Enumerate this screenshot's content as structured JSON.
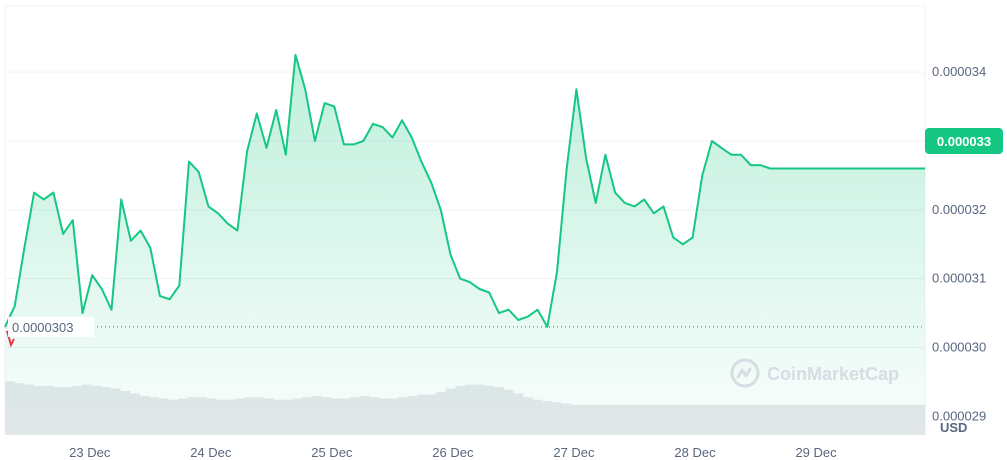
{
  "chart_data": {
    "type": "line",
    "currency": "USD",
    "x_ticks": [
      "23 Dec",
      "24 Dec",
      "25 Dec",
      "26 Dec",
      "27 Dec",
      "28 Dec",
      "29 Dec"
    ],
    "y_ticks": [
      "0.000034",
      "0.000033",
      "0.000032",
      "0.000031",
      "0.000030",
      "0.000029"
    ],
    "y_tick_values": [
      3.4e-05,
      3.3e-05,
      3.2e-05,
      3.1e-05,
      3e-05,
      2.9e-05
    ],
    "ylim": [
      2.873e-05,
      3.496e-05
    ],
    "xlim": [
      22.3,
      29.9
    ],
    "reference_line": {
      "value": 3.03e-05,
      "label": "0.0000303"
    },
    "current_price": {
      "value": 3.3e-05,
      "label": "0.000033"
    },
    "colors": {
      "up": "#16c784",
      "down": "#ea3943",
      "grid": "#eff2f5",
      "volume": "#e6e8ec"
    },
    "watermark": "CoinMarketCap",
    "series": [
      {
        "x": [
          22.3,
          22.38,
          22.46,
          22.54,
          22.62,
          22.7,
          22.78,
          22.86,
          22.94,
          23.02,
          23.1,
          23.18,
          23.26,
          23.34,
          23.42,
          23.5,
          23.58,
          23.66,
          23.74,
          23.82,
          23.9,
          23.98,
          24.06,
          24.14,
          24.22,
          24.3,
          24.38,
          24.46,
          24.54,
          24.62,
          24.7,
          24.78,
          24.86,
          24.94,
          25.02,
          25.1,
          25.18,
          25.26,
          25.34,
          25.42,
          25.5,
          25.58,
          25.66,
          25.74,
          25.82,
          25.9,
          25.98,
          26.06,
          26.14,
          26.22,
          26.3,
          26.38,
          26.46,
          26.54,
          26.62,
          26.7,
          26.78,
          26.86,
          26.94,
          27.02,
          27.1,
          27.18,
          27.26,
          27.34,
          27.42,
          27.5,
          27.58,
          27.66,
          27.74,
          27.82,
          27.9,
          27.98,
          28.06,
          28.14,
          28.22,
          28.3,
          28.38,
          28.46,
          28.54,
          28.62,
          28.7,
          28.78,
          28.86,
          28.94,
          29.02,
          29.1,
          29.18,
          29.26,
          29.34,
          29.42,
          29.5,
          29.58,
          29.66,
          29.74,
          29.82,
          29.9
        ],
        "y": [
          3.03e-05,
          3.06e-05,
          3.145e-05,
          3.225e-05,
          3.215e-05,
          3.225e-05,
          3.165e-05,
          3.185e-05,
          3.05e-05,
          3.105e-05,
          3.085e-05,
          3.055e-05,
          3.215e-05,
          3.155e-05,
          3.17e-05,
          3.145e-05,
          3.075e-05,
          3.07e-05,
          3.09e-05,
          3.27e-05,
          3.255e-05,
          3.205e-05,
          3.195e-05,
          3.18e-05,
          3.17e-05,
          3.285e-05,
          3.34e-05,
          3.29e-05,
          3.345e-05,
          3.28e-05,
          3.425e-05,
          3.375e-05,
          3.3e-05,
          3.355e-05,
          3.35e-05,
          3.295e-05,
          3.295e-05,
          3.3e-05,
          3.325e-05,
          3.32e-05,
          3.305e-05,
          3.33e-05,
          3.305e-05,
          3.27e-05,
          3.24e-05,
          3.2e-05,
          3.135e-05,
          3.1e-05,
          3.095e-05,
          3.085e-05,
          3.08e-05,
          3.05e-05,
          3.055e-05,
          3.04e-05,
          3.045e-05,
          3.055e-05,
          3.03e-05,
          3.11e-05,
          3.26e-05,
          3.375e-05,
          3.275e-05,
          3.21e-05,
          3.28e-05,
          3.225e-05,
          3.21e-05,
          3.205e-05,
          3.215e-05,
          3.195e-05,
          3.205e-05,
          3.16e-05,
          3.15e-05,
          3.16e-05,
          3.25e-05,
          3.3e-05,
          3.29e-05,
          3.28e-05,
          3.28e-05,
          3.265e-05,
          3.265e-05,
          3.26e-05,
          3.26e-05,
          3.26e-05,
          3.26e-05,
          3.26e-05,
          3.26e-05,
          3.26e-05,
          3.26e-05,
          3.26e-05,
          3.26e-05,
          3.26e-05,
          3.26e-05,
          3.26e-05,
          3.26e-05,
          3.26e-05,
          3.26e-05,
          3.26e-05
        ],
        "volume": [
          0.85,
          0.82,
          0.8,
          0.78,
          0.78,
          0.76,
          0.76,
          0.78,
          0.8,
          0.78,
          0.76,
          0.74,
          0.7,
          0.66,
          0.62,
          0.6,
          0.58,
          0.56,
          0.58,
          0.6,
          0.6,
          0.58,
          0.56,
          0.56,
          0.58,
          0.6,
          0.6,
          0.58,
          0.56,
          0.56,
          0.58,
          0.6,
          0.62,
          0.6,
          0.58,
          0.58,
          0.6,
          0.62,
          0.6,
          0.58,
          0.58,
          0.6,
          0.62,
          0.64,
          0.64,
          0.68,
          0.74,
          0.78,
          0.8,
          0.8,
          0.78,
          0.76,
          0.72,
          0.66,
          0.6,
          0.56,
          0.54,
          0.52,
          0.5,
          0.48,
          0.48,
          0.48,
          0.48,
          0.48,
          0.48,
          0.48,
          0.48,
          0.48,
          0.48,
          0.48,
          0.48,
          0.48,
          0.48,
          0.48,
          0.48,
          0.48,
          0.48,
          0.48,
          0.48,
          0.48,
          0.48,
          0.48,
          0.48,
          0.48,
          0.48,
          0.48,
          0.48,
          0.48,
          0.48,
          0.48,
          0.48,
          0.48,
          0.48,
          0.48,
          0.48,
          0.48
        ]
      }
    ]
  }
}
